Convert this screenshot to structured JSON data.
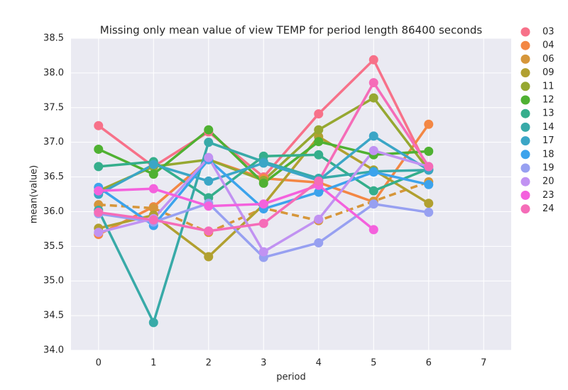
{
  "chart_data": {
    "type": "line",
    "title": "Missing only mean value of view TEMP for period length 86400 seconds",
    "x_label": "period",
    "y_label": "mean(value)",
    "x": [
      0,
      1,
      2,
      3,
      4,
      5,
      6
    ],
    "xlim": [
      -0.5,
      7.5
    ],
    "xticks": [
      0,
      1,
      2,
      3,
      4,
      5,
      6,
      7
    ],
    "ylim": [
      34.0,
      38.5
    ],
    "yticks": [
      {
        "value": 34.0,
        "label": "34.0"
      },
      34.5,
      {
        "value": 35.0,
        "label": "35.0"
      },
      35.5,
      {
        "value": 36.0,
        "label": "36.0"
      },
      36.5,
      {
        "value": 37.0,
        "label": "37.0"
      },
      37.5,
      {
        "value": 38.0,
        "label": "38.0"
      },
      38.5
    ],
    "grid": true,
    "legend": "outside right",
    "series": [
      {
        "name": "03",
        "color": "#f77189",
        "values": [
          37.24,
          36.65,
          37.15,
          36.5,
          37.41,
          38.19,
          36.6
        ]
      },
      {
        "name": "04",
        "color": "#f38744",
        "values": [
          35.67,
          36.07,
          36.75,
          36.48,
          36.42,
          36.14,
          37.26
        ]
      },
      {
        "name": "06",
        "color": "#d6963a",
        "dashed": true,
        "values": [
          36.1,
          36.05,
          35.7,
          36.05,
          35.87,
          36.15,
          36.43
        ]
      },
      {
        "name": "09",
        "color": "#b1a030",
        "values": [
          35.76,
          35.95,
          35.35,
          36.1,
          37.08,
          36.6,
          36.12
        ]
      },
      {
        "name": "11",
        "color": "#96a831",
        "values": [
          36.3,
          36.65,
          36.75,
          36.45,
          37.18,
          37.64,
          36.6
        ]
      },
      {
        "name": "12",
        "color": "#4fb132",
        "values": [
          36.9,
          36.54,
          37.18,
          36.41,
          37.01,
          36.82,
          36.87
        ]
      },
      {
        "name": "13",
        "color": "#35ae8c",
        "values": [
          36.65,
          36.72,
          36.2,
          36.8,
          36.82,
          36.3,
          36.62
        ]
      },
      {
        "name": "14",
        "color": "#38aaa8",
        "values": [
          36.02,
          34.4,
          37.0,
          36.72,
          36.48,
          36.58,
          36.6
        ]
      },
      {
        "name": "17",
        "color": "#3ba6c6",
        "values": [
          36.25,
          36.68,
          36.44,
          36.7,
          36.45,
          37.09,
          36.6
        ]
      },
      {
        "name": "18",
        "color": "#3ca3ec",
        "values": [
          36.35,
          35.8,
          36.75,
          36.04,
          36.28,
          36.57,
          36.39
        ]
      },
      {
        "name": "19",
        "color": "#97a0f1",
        "values": [
          35.97,
          35.85,
          36.12,
          35.34,
          35.55,
          36.11,
          35.99
        ]
      },
      {
        "name": "20",
        "color": "#c192f2",
        "values": [
          35.7,
          35.9,
          36.78,
          35.42,
          35.89,
          36.88,
          36.65
        ]
      },
      {
        "name": "23",
        "color": "#f461dd",
        "values": [
          36.3,
          36.33,
          36.08,
          36.11,
          36.38,
          35.74,
          null
        ]
      },
      {
        "name": "24",
        "color": "#f56cb8",
        "values": [
          35.99,
          35.88,
          35.72,
          35.83,
          36.44,
          37.86,
          36.65
        ]
      }
    ]
  }
}
